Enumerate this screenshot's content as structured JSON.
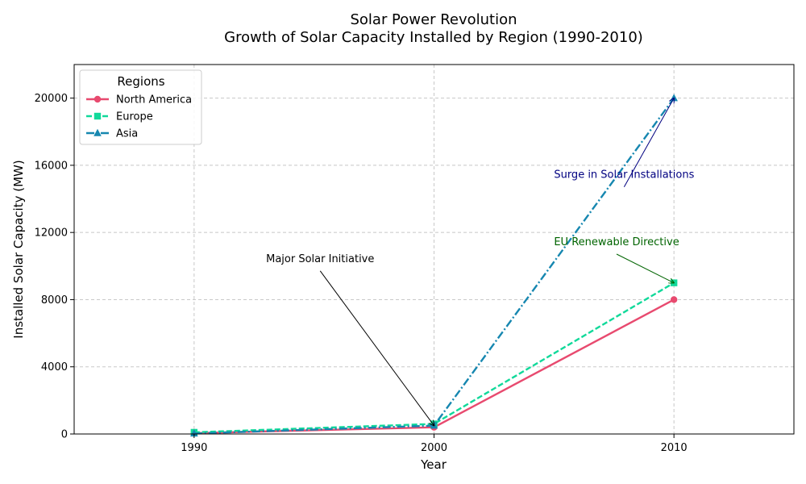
{
  "chart_data": {
    "type": "line",
    "title": "Solar Power Revolution",
    "subtitle": "Growth of Solar Capacity Installed by Region (1990-2010)",
    "xlabel": "Year",
    "ylabel": "Installed Solar Capacity (MW)",
    "x": [
      1990,
      2000,
      2010
    ],
    "xlim": [
      1985,
      2015
    ],
    "ylim": [
      0,
      22000
    ],
    "xticks": [
      1990,
      2000,
      2010
    ],
    "yticks": [
      0,
      4000,
      8000,
      12000,
      16000,
      20000
    ],
    "grid": true,
    "legend": {
      "title": "Regions",
      "placement": "top-left"
    },
    "series": [
      {
        "name": "North America",
        "values": [
          50,
          400,
          8000
        ],
        "color": "#e84a6f",
        "marker": "circle",
        "dash": "solid"
      },
      {
        "name": "Europe",
        "values": [
          100,
          600,
          9000
        ],
        "color": "#11d99a",
        "marker": "square",
        "dash": "dashed"
      },
      {
        "name": "Asia",
        "values": [
          30,
          500,
          20000
        ],
        "color": "#1687b0",
        "marker": "triangle",
        "dash": "dashdot"
      }
    ],
    "annotations": [
      {
        "text": "Major Solar Initiative",
        "x": 2000,
        "y": 500,
        "text_x": 1993,
        "text_y": 10000,
        "color": "#000000"
      },
      {
        "text": "EU Renewable Directive",
        "x": 2010,
        "y": 9000,
        "text_x": 2005,
        "text_y": 11000,
        "color": "#006400"
      },
      {
        "text": "Surge in Solar Installations",
        "x": 2010,
        "y": 20000,
        "text_x": 2005,
        "text_y": 15000,
        "color": "#000080"
      }
    ]
  }
}
